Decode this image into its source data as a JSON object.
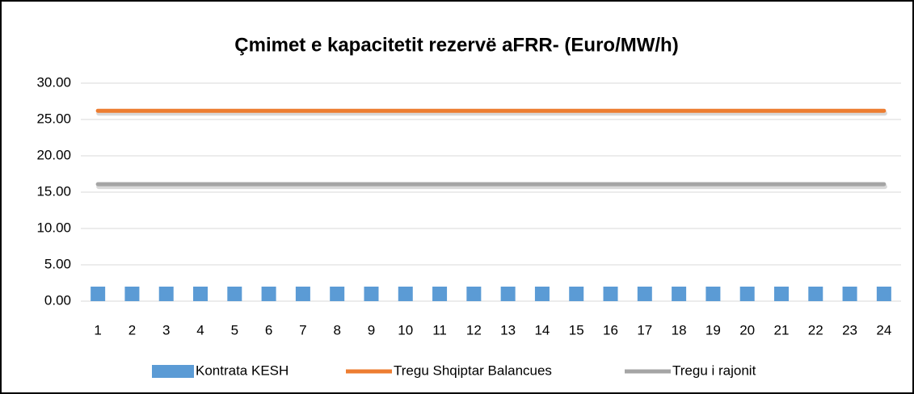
{
  "chart_data": {
    "type": "bar",
    "title": "Çmimet e kapacitetit rezervë aFRR- (Euro/MW/h)",
    "categories": [
      "1",
      "2",
      "3",
      "4",
      "5",
      "6",
      "7",
      "8",
      "9",
      "10",
      "11",
      "12",
      "13",
      "14",
      "15",
      "16",
      "17",
      "18",
      "19",
      "20",
      "21",
      "22",
      "23",
      "24"
    ],
    "series": [
      {
        "name": "Kontrata KESH",
        "type": "bar",
        "color": "#5b9bd5",
        "values": [
          2,
          2,
          2,
          2,
          2,
          2,
          2,
          2,
          2,
          2,
          2,
          2,
          2,
          2,
          2,
          2,
          2,
          2,
          2,
          2,
          2,
          2,
          2,
          2
        ]
      },
      {
        "name": "Tregu Shqiptar Balancues",
        "type": "line",
        "color": "#ed7d31",
        "values": [
          26.2,
          26.2,
          26.2,
          26.2,
          26.2,
          26.2,
          26.2,
          26.2,
          26.2,
          26.2,
          26.2,
          26.2,
          26.2,
          26.2,
          26.2,
          26.2,
          26.2,
          26.2,
          26.2,
          26.2,
          26.2,
          26.2,
          26.2,
          26.2
        ]
      },
      {
        "name": "Tregu i rajonit",
        "type": "line",
        "color": "#a5a5a5",
        "values": [
          16.1,
          16.1,
          16.1,
          16.1,
          16.1,
          16.1,
          16.1,
          16.1,
          16.1,
          16.1,
          16.1,
          16.1,
          16.1,
          16.1,
          16.1,
          16.1,
          16.1,
          16.1,
          16.1,
          16.1,
          16.1,
          16.1,
          16.1,
          16.1
        ]
      }
    ],
    "ylim": [
      0,
      30
    ],
    "yticks": [
      {
        "value": 0,
        "label": "0.00"
      },
      {
        "value": 5,
        "label": "5.00"
      },
      {
        "value": 10,
        "label": "10.00"
      },
      {
        "value": 15,
        "label": "15.00"
      },
      {
        "value": 20,
        "label": "20.00"
      },
      {
        "value": 25,
        "label": "25.00"
      },
      {
        "value": 30,
        "label": "30.00"
      }
    ],
    "grid": true,
    "legend": "bottom"
  }
}
